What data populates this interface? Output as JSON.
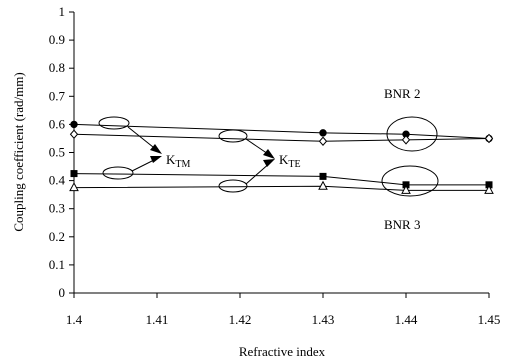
{
  "chart_data": {
    "type": "line",
    "title": "",
    "xlabel": "Refractive index",
    "ylabel": "Coupling coefficient  (rad/mm)",
    "xlim": [
      1.4,
      1.45
    ],
    "ylim": [
      0,
      1
    ],
    "xticks": [
      "1.4",
      "1.41",
      "1.42",
      "1.43",
      "1.44",
      "1.45"
    ],
    "yticks": [
      "0",
      "0.1",
      "0.2",
      "0.3",
      "0.4",
      "0.5",
      "0.6",
      "0.7",
      "0.8",
      "0.9",
      "1"
    ],
    "grid": false,
    "series": [
      {
        "group": "BNR 2",
        "mode": "TM",
        "marker": "filled-circle",
        "x": [
          1.4,
          1.43,
          1.44,
          1.45
        ],
        "y": [
          0.6,
          0.57,
          0.565,
          0.55
        ]
      },
      {
        "group": "BNR 2",
        "mode": "TE",
        "marker": "open-diamond",
        "x": [
          1.4,
          1.43,
          1.44,
          1.45
        ],
        "y": [
          0.565,
          0.54,
          0.545,
          0.55
        ]
      },
      {
        "group": "BNR 3",
        "mode": "TM",
        "marker": "filled-square",
        "x": [
          1.4,
          1.43,
          1.44,
          1.45
        ],
        "y": [
          0.425,
          0.415,
          0.385,
          0.385
        ]
      },
      {
        "group": "BNR 3",
        "mode": "TE",
        "marker": "open-triangle",
        "x": [
          1.4,
          1.43,
          1.44,
          1.45
        ],
        "y": [
          0.375,
          0.38,
          0.365,
          0.365
        ]
      }
    ],
    "annotations": {
      "group_labels": [
        "BNR 2",
        "BNR 3"
      ],
      "mode_labels": [
        {
          "base": "K",
          "sub": "TM"
        },
        {
          "base": "K",
          "sub": "TE"
        }
      ]
    }
  }
}
